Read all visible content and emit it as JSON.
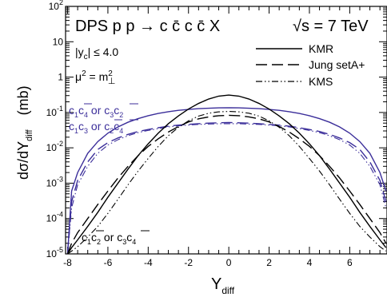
{
  "chart_data": {
    "type": "line",
    "title": "DPS  p p → c c̄ c c̄ X",
    "energy_label": "√s = 7 TeV",
    "xlabel": "Y",
    "xlabel_sub": "diff",
    "ylabel": "dσ/dY",
    "ylabel_sub": "diff",
    "ylabel_unit": "(mb)",
    "cut_label": "|y",
    "cut_label_sub": "c",
    "cut_label_rest": "| ≤ 4.0",
    "scale_label": "μ",
    "scale_label_sup": "2",
    "scale_label_eq": " = m",
    "scale_label_m_sup": "2",
    "scale_label_m_sub": "⊥",
    "xlim": [
      -8.1,
      7.85
    ],
    "ylim": [
      1e-05,
      100
    ],
    "yscale": "log",
    "xticks": [
      -8,
      -6,
      -4,
      -2,
      0,
      2,
      4,
      6
    ],
    "xtick_labels": [
      "-8",
      "-6",
      "-4",
      "-2",
      "0",
      "2",
      "4",
      "6"
    ],
    "yticks": [
      1e-05,
      0.0001,
      0.001,
      0.01,
      0.1,
      1,
      10,
      100
    ],
    "ytick_labels": [
      {
        "base": "10",
        "exp": "-5"
      },
      {
        "base": "10",
        "exp": "-4"
      },
      {
        "base": "10",
        "exp": "-3"
      },
      {
        "base": "10",
        "exp": "-2"
      },
      {
        "base": "10",
        "exp": "-1"
      },
      {
        "base": "1",
        "exp": ""
      },
      {
        "base": "10",
        "exp": ""
      },
      {
        "base": "10",
        "exp": "2"
      }
    ],
    "legend": {
      "placement": "top-right",
      "entries": [
        {
          "label": "KMR",
          "style": "solid"
        },
        {
          "label": "Jung setA+",
          "style": "dashed"
        },
        {
          "label": "KMS",
          "style": "dashdotdot"
        }
      ]
    },
    "annotations": [
      {
        "id": "label_c1c4",
        "parts": [
          "c",
          "1",
          "c",
          "4",
          " or c",
          "3",
          "c",
          "2"
        ],
        "color": "#3b2e9a"
      },
      {
        "id": "label_c1c3",
        "parts": [
          "c",
          "1",
          "c",
          "3",
          " or c",
          "2",
          "c",
          "4"
        ],
        "color": "#3b2e9a"
      },
      {
        "id": "label_c1c2",
        "parts": [
          "c",
          "1",
          "c",
          "2",
          " or c",
          "3",
          "c",
          "4"
        ],
        "color": "#000000"
      }
    ],
    "colors": {
      "black": "#000000",
      "blue": "#3b2e9a"
    },
    "x": [
      -8.0,
      -7.8,
      -7.5,
      -7.0,
      -6.5,
      -6.0,
      -5.5,
      -5.0,
      -4.5,
      -4.0,
      -3.5,
      -3.0,
      -2.5,
      -2.0,
      -1.5,
      -1.0,
      -0.5,
      0.0,
      0.5,
      1.0,
      1.5,
      2.0,
      2.5,
      3.0,
      3.5,
      4.0,
      4.5,
      5.0,
      5.5,
      6.0,
      6.5,
      7.0,
      7.5,
      7.8
    ],
    "series": [
      {
        "style": "solid",
        "group": "blue",
        "values": [
          1e-05,
          0.0006,
          0.002,
          0.007,
          0.015,
          0.026,
          0.039,
          0.053,
          0.067,
          0.081,
          0.094,
          0.105,
          0.115,
          0.122,
          0.128,
          0.132,
          0.135,
          0.136,
          0.135,
          0.132,
          0.128,
          0.122,
          0.115,
          0.105,
          0.094,
          0.081,
          0.067,
          0.053,
          0.039,
          0.026,
          0.015,
          0.007,
          0.002,
          0.0006
        ]
      },
      {
        "style": "dashed",
        "group": "blue",
        "values": [
          1e-05,
          0.0003,
          0.0012,
          0.004,
          0.009,
          0.014,
          0.019,
          0.024,
          0.029,
          0.033,
          0.037,
          0.041,
          0.044,
          0.046,
          0.048,
          0.05,
          0.051,
          0.052,
          0.051,
          0.05,
          0.048,
          0.046,
          0.044,
          0.041,
          0.037,
          0.033,
          0.029,
          0.024,
          0.019,
          0.014,
          0.009,
          0.004,
          0.0012,
          0.0003
        ]
      },
      {
        "style": "dashdotdot",
        "group": "blue",
        "values": [
          1e-05,
          0.0002,
          0.0009,
          0.003,
          0.007,
          0.012,
          0.017,
          0.022,
          0.027,
          0.031,
          0.035,
          0.039,
          0.042,
          0.044,
          0.046,
          0.047,
          0.048,
          0.048,
          0.048,
          0.047,
          0.046,
          0.044,
          0.042,
          0.039,
          0.035,
          0.031,
          0.027,
          0.022,
          0.017,
          0.012,
          0.007,
          0.003,
          0.0009,
          0.0002
        ]
      },
      {
        "style": "solid",
        "group": "black",
        "values": [
          1e-05,
          1.5e-05,
          2.5e-05,
          6e-05,
          0.00015,
          0.0004,
          0.001,
          0.0025,
          0.006,
          0.013,
          0.026,
          0.048,
          0.08,
          0.125,
          0.18,
          0.24,
          0.29,
          0.31,
          0.29,
          0.24,
          0.18,
          0.125,
          0.08,
          0.048,
          0.026,
          0.013,
          0.006,
          0.0025,
          0.001,
          0.0004,
          0.00015,
          6e-05,
          2.5e-05,
          1.5e-05
        ]
      },
      {
        "style": "dashed",
        "group": "black",
        "values": [
          1e-05,
          2e-05,
          4e-05,
          0.0001,
          0.00025,
          0.0006,
          0.0014,
          0.003,
          0.006,
          0.011,
          0.018,
          0.028,
          0.04,
          0.054,
          0.066,
          0.075,
          0.081,
          0.083,
          0.081,
          0.075,
          0.066,
          0.054,
          0.04,
          0.028,
          0.018,
          0.011,
          0.006,
          0.003,
          0.0014,
          0.0006,
          0.00025,
          0.0001,
          4e-05,
          2e-05
        ]
      },
      {
        "style": "dashdotdot",
        "group": "black",
        "values": [
          1e-05,
          1.2e-05,
          1.6e-05,
          3e-05,
          6e-05,
          0.00014,
          0.00035,
          0.0009,
          0.0022,
          0.005,
          0.011,
          0.022,
          0.038,
          0.058,
          0.079,
          0.095,
          0.104,
          0.107,
          0.104,
          0.095,
          0.079,
          0.058,
          0.038,
          0.022,
          0.011,
          0.005,
          0.0022,
          0.0009,
          0.00035,
          0.00014,
          6e-05,
          3e-05,
          1.6e-05,
          1.2e-05
        ]
      }
    ]
  }
}
